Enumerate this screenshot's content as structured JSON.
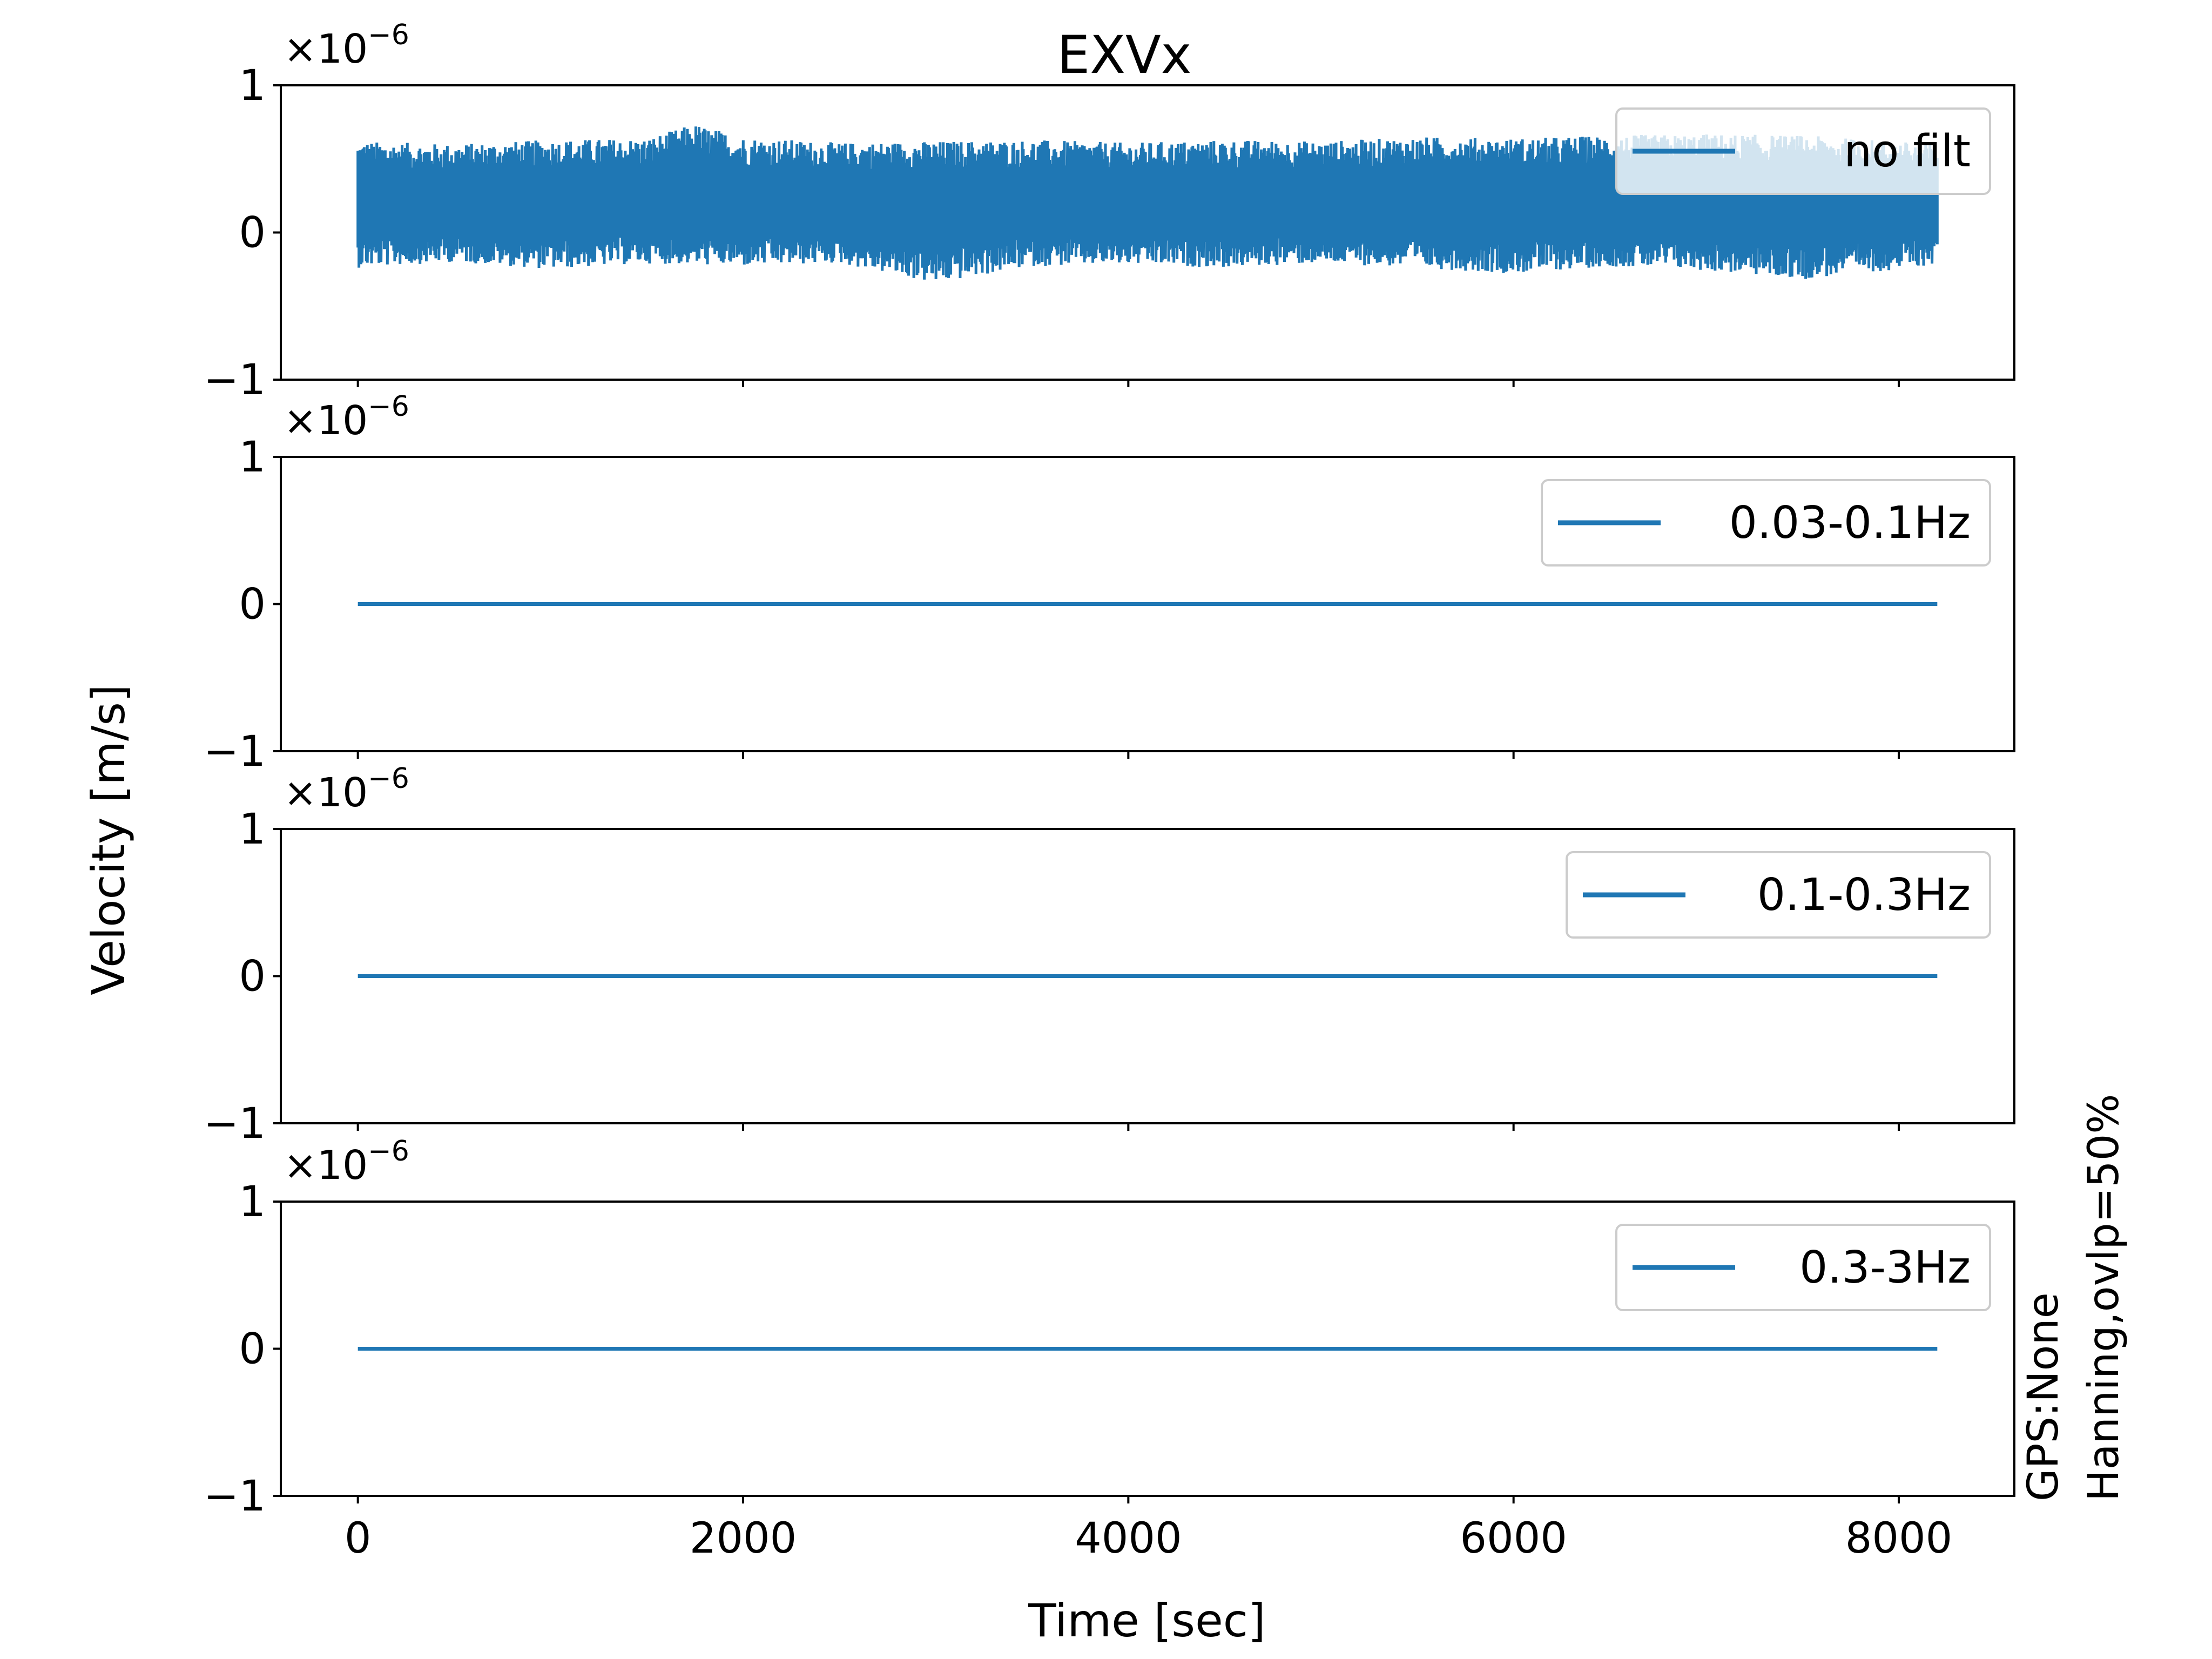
{
  "chart_data": {
    "type": "line",
    "title": "EXVx",
    "xlabel": "Time [sec]",
    "ylabel": "Velocity [m/s]",
    "side_note": [
      "GPS:None",
      "Hanning,ovlp=50%"
    ],
    "xlim": [
      -400,
      8600
    ],
    "xticks": [
      0,
      2000,
      4000,
      6000,
      8000
    ],
    "x_tick_labels": [
      "0",
      "2000",
      "4000",
      "6000",
      "8000"
    ],
    "grid": false,
    "legend_position": "top-right",
    "y_multiplier_label": "×10",
    "y_multiplier_exponent": "−6",
    "color": "#1f77b4",
    "subplots": [
      {
        "legend": "no filt",
        "ylim": [
          -1e-06,
          1e-06
        ],
        "yticks": [
          -1e-06,
          0,
          1e-06
        ],
        "y_tick_labels": [
          "−1",
          "0",
          "1"
        ],
        "x": [
          0,
          8200
        ],
        "mean": 2e-07,
        "envelope_upper": [
          [
            0,
            6.2e-07
          ],
          [
            500,
            6e-07
          ],
          [
            1000,
            6.3e-07
          ],
          [
            1500,
            6.4e-07
          ],
          [
            1750,
            7.4e-07
          ],
          [
            2000,
            6.5e-07
          ],
          [
            2500,
            6.1e-07
          ],
          [
            3000,
            6.2e-07
          ],
          [
            3500,
            6.3e-07
          ],
          [
            4000,
            6.1e-07
          ],
          [
            4500,
            6.3e-07
          ],
          [
            5000,
            6.2e-07
          ],
          [
            5500,
            6.5e-07
          ],
          [
            6000,
            6.4e-07
          ],
          [
            6500,
            6.6e-07
          ],
          [
            7000,
            6.7e-07
          ],
          [
            7500,
            6.6e-07
          ],
          [
            8000,
            6.2e-07
          ],
          [
            8200,
            6e-07
          ]
        ],
        "envelope_lower": [
          [
            0,
            -2.4e-07
          ],
          [
            500,
            -2e-07
          ],
          [
            1000,
            -2.5e-07
          ],
          [
            1500,
            -2.1e-07
          ],
          [
            2000,
            -2.3e-07
          ],
          [
            2500,
            -2.1e-07
          ],
          [
            3000,
            -3.5e-07
          ],
          [
            3500,
            -2.3e-07
          ],
          [
            4000,
            -2.2e-07
          ],
          [
            4500,
            -2.4e-07
          ],
          [
            5000,
            -2.1e-07
          ],
          [
            5500,
            -2.4e-07
          ],
          [
            6000,
            -2.8e-07
          ],
          [
            6500,
            -2.3e-07
          ],
          [
            7000,
            -2.6e-07
          ],
          [
            7500,
            -3.2e-07
          ],
          [
            8000,
            -2.5e-07
          ],
          [
            8200,
            -2.2e-07
          ]
        ]
      },
      {
        "legend": "0.03-0.1Hz",
        "ylim": [
          -1e-06,
          1e-06
        ],
        "yticks": [
          -1e-06,
          0,
          1e-06
        ],
        "y_tick_labels": [
          "−1",
          "0",
          "1"
        ],
        "x": [
          0,
          8200
        ],
        "y": [
          0,
          0
        ]
      },
      {
        "legend": "0.1-0.3Hz",
        "ylim": [
          -1e-06,
          1e-06
        ],
        "yticks": [
          -1e-06,
          0,
          1e-06
        ],
        "y_tick_labels": [
          "−1",
          "0",
          "1"
        ],
        "x": [
          0,
          8200
        ],
        "y": [
          0,
          0
        ]
      },
      {
        "legend": "0.3-3Hz",
        "ylim": [
          -1e-06,
          1e-06
        ],
        "yticks": [
          -1e-06,
          0,
          1e-06
        ],
        "y_tick_labels": [
          "−1",
          "0",
          "1"
        ],
        "x": [
          0,
          8200
        ],
        "y": [
          0,
          0
        ]
      }
    ]
  }
}
